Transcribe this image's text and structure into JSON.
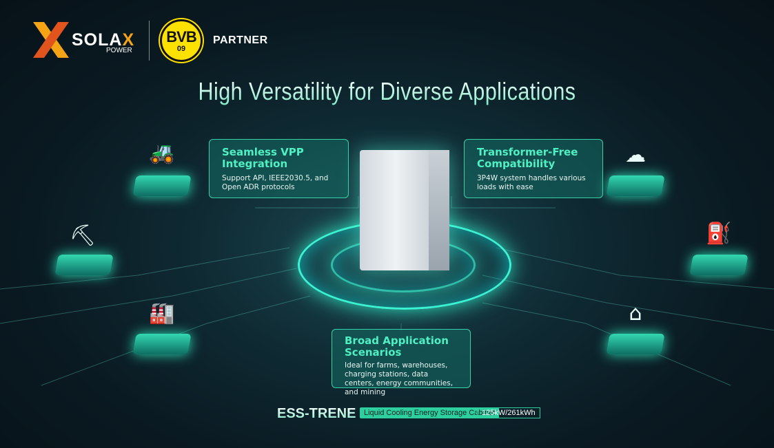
{
  "header": {
    "brand": "SOLA",
    "brand_x": "X",
    "brand_sub": "POWER",
    "partner_logo": "BVB",
    "partner_logo_sub": "09",
    "partner_label": "PARTNER"
  },
  "title": "High Versatility for Diverse Applications",
  "cards": [
    {
      "title": "Seamless VPP Integration",
      "text": "Support API, IEEE2030.5, and Open ADR protocols"
    },
    {
      "title": "Transformer-Free Compatibility",
      "text": "3P4W system handles various loads with ease"
    },
    {
      "title": "Broad Application Scenarios",
      "text": "Ideal for farms, warehouses, charging stations, data centers, energy communities, and mining"
    }
  ],
  "applications": [
    {
      "icon": "farm-tractor-icon"
    },
    {
      "icon": "mining-cart-icon"
    },
    {
      "icon": "warehouse-icon"
    },
    {
      "icon": "cloud-data-center-icon"
    },
    {
      "icon": "ev-charging-station-icon"
    },
    {
      "icon": "energy-community-home-icon"
    }
  ],
  "footer": {
    "product": "ESS-TRENE",
    "tag": "Liquid Cooling Energy Storage Cabinet",
    "spec": "125kW/261kWh"
  },
  "colors": {
    "accent": "#36d3a8",
    "brand_orange": "#f5a416",
    "bvb_yellow": "#fde100"
  }
}
